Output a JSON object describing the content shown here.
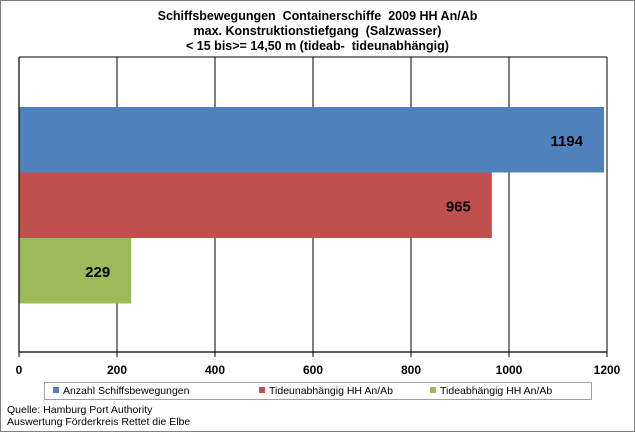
{
  "chart_data": {
    "type": "bar",
    "orientation": "horizontal",
    "title_lines": [
      "Schiffsbewegungen  Containerschiffe  2009 HH An/Ab",
      "max. Konstruktionstiefgang  (Salzwasser)",
      "< 15 bis>= 14,50 m (tideab-  tideunabhängig)"
    ],
    "series": [
      {
        "name": "Anzahl Schiffsbewegungen",
        "value": 1194,
        "color": "#4f81bd"
      },
      {
        "name": "Tideunabhängig HH An/Ab",
        "value": 965,
        "color": "#c0504d"
      },
      {
        "name": "Tideabhängig HH An/Ab",
        "value": 229,
        "color": "#9bbb59"
      }
    ],
    "xlim": [
      0,
      1200
    ],
    "xticks": [
      "0",
      "200",
      "400",
      "600",
      "800",
      "1000",
      "1200"
    ],
    "grid": true,
    "legend_position": "bottom"
  },
  "source_lines": [
    "Quelle: Hamburg Port Authority",
    "Auswertung Förderkreis Rettet die Elbe"
  ]
}
